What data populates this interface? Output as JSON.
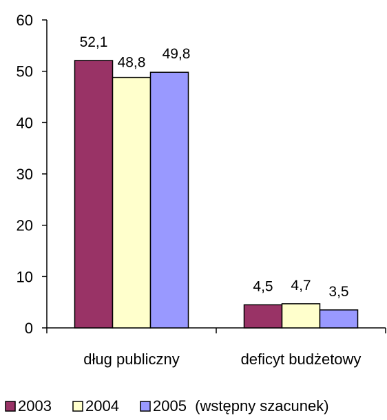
{
  "chart_data": {
    "type": "bar",
    "categories": [
      "dług publiczny",
      "deficyt budżetowy"
    ],
    "series": [
      {
        "name": "2003",
        "values": [
          52.1,
          4.5
        ],
        "labels": [
          "52,1",
          "4,5"
        ],
        "color": "#993366"
      },
      {
        "name": "2004",
        "values": [
          48.8,
          4.7
        ],
        "labels": [
          "48,8",
          "4,7"
        ],
        "color": "#FFFFCC"
      },
      {
        "name": "2005  (wstępny szacunek)",
        "values": [
          49.8,
          3.5
        ],
        "labels": [
          "49,8",
          "3,5"
        ],
        "color": "#9999FF"
      }
    ],
    "yticks": [
      "0",
      "10",
      "20",
      "30",
      "40",
      "50",
      "60"
    ],
    "ylim": [
      0,
      60
    ],
    "grid": false,
    "legend_position": "bottom"
  }
}
